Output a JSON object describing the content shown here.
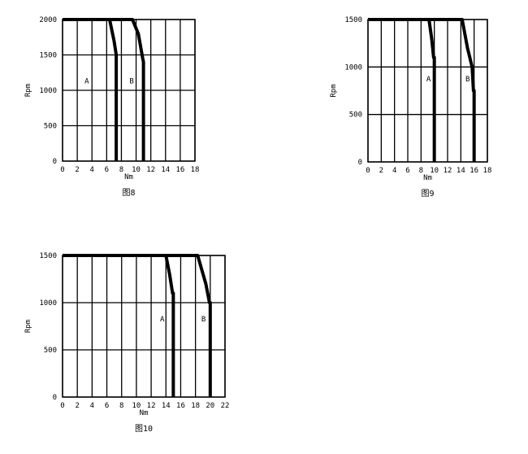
{
  "chart_data": [
    {
      "type": "line",
      "caption": "图8",
      "xlabel": "Nm",
      "ylabel": "Rpm",
      "xlim": [
        0,
        18
      ],
      "ylim": [
        0,
        2000
      ],
      "xticks": [
        "0",
        "2",
        "4",
        "6",
        "8",
        "10",
        "12",
        "14",
        "16",
        "18"
      ],
      "yticks": [
        "0",
        "500",
        "1000",
        "1500",
        "2000"
      ],
      "grid": true,
      "series": [
        {
          "name": "A",
          "x": [
            0,
            6.4,
            7.0,
            7.3,
            7.3
          ],
          "y": [
            2000,
            2000,
            1700,
            1500,
            0
          ]
        },
        {
          "name": "B",
          "x": [
            0,
            9.5,
            10.3,
            10.9,
            11.0,
            11.0
          ],
          "y": [
            2000,
            2000,
            1800,
            1450,
            1400,
            0
          ]
        }
      ],
      "label_points": [
        {
          "name": "A",
          "x": 3,
          "y": 1100
        },
        {
          "name": "B",
          "x": 9.1,
          "y": 1100
        }
      ]
    },
    {
      "type": "line",
      "caption": "图9",
      "xlabel": "Nm",
      "ylabel": "Rpm",
      "xlim": [
        0,
        18
      ],
      "ylim": [
        0,
        1500
      ],
      "xticks": [
        "0",
        "2",
        "4",
        "6",
        "8",
        "10",
        "12",
        "14",
        "16",
        "18"
      ],
      "yticks": [
        "0",
        "500",
        "1000",
        "1500"
      ],
      "grid": true,
      "series": [
        {
          "name": "A",
          "x": [
            0,
            9.2,
            9.6,
            9.9,
            10.0,
            10.0
          ],
          "y": [
            1500,
            1500,
            1300,
            1100,
            1100,
            0
          ]
        },
        {
          "name": "B",
          "x": [
            0,
            14.2,
            15.0,
            15.7,
            15.9,
            16.0,
            16.0
          ],
          "y": [
            1500,
            1500,
            1200,
            1000,
            750,
            750,
            0
          ]
        }
      ],
      "label_points": [
        {
          "name": "A",
          "x": 8.8,
          "y": 850
        },
        {
          "name": "B",
          "x": 14.7,
          "y": 850
        }
      ]
    },
    {
      "type": "line",
      "caption": "图10",
      "xlabel": "Nm",
      "ylabel": "Rpm",
      "xlim": [
        0,
        22
      ],
      "ylim": [
        0,
        1500
      ],
      "xticks": [
        "0",
        "2",
        "4",
        "6",
        "8",
        "10",
        "12",
        "14",
        "16",
        "18",
        "20",
        "22"
      ],
      "yticks": [
        "0",
        "500",
        "1000",
        "1500"
      ],
      "grid": true,
      "series": [
        {
          "name": "A",
          "x": [
            0,
            14.0,
            14.5,
            14.9,
            15.0,
            15.0
          ],
          "y": [
            1500,
            1500,
            1300,
            1100,
            1100,
            0
          ]
        },
        {
          "name": "B",
          "x": [
            0,
            18.3,
            19.4,
            19.9,
            20.0,
            20.0
          ],
          "y": [
            1500,
            1500,
            1200,
            1000,
            1000,
            0
          ]
        }
      ],
      "label_points": [
        {
          "name": "A",
          "x": 13.2,
          "y": 800
        },
        {
          "name": "B",
          "x": 18.8,
          "y": 800
        }
      ]
    }
  ]
}
